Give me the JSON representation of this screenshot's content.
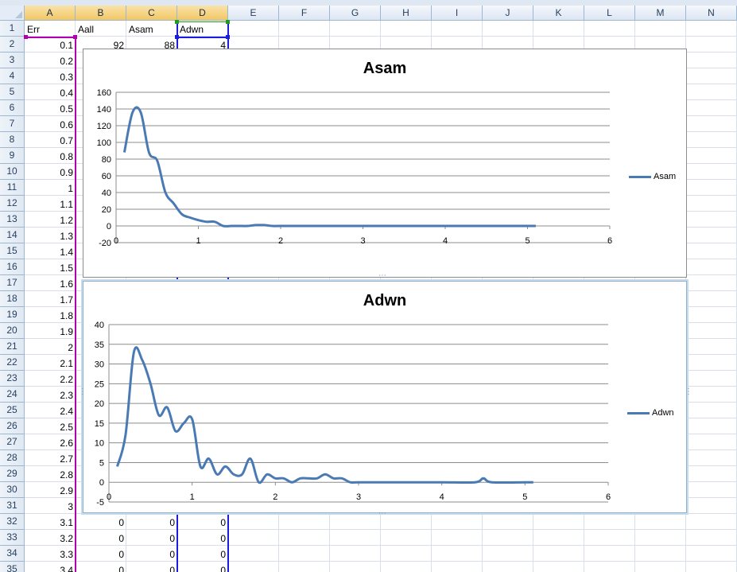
{
  "sheet": {
    "columns": [
      "A",
      "B",
      "C",
      "D",
      "E",
      "F",
      "G",
      "H",
      "I",
      "J",
      "K",
      "L",
      "M",
      "N"
    ],
    "selected_columns": [
      "A",
      "B",
      "C",
      "D"
    ],
    "rows": [
      "1",
      "2",
      "3",
      "4",
      "5",
      "6",
      "7",
      "8",
      "9",
      "10",
      "11",
      "12",
      "13",
      "14",
      "15",
      "16",
      "17",
      "18",
      "19",
      "20",
      "21",
      "22",
      "23",
      "24",
      "25",
      "26",
      "27",
      "28",
      "29",
      "30",
      "31",
      "32",
      "33",
      "34",
      "35"
    ],
    "headers": {
      "err": "Err",
      "aall": "Aall",
      "asam": "Asam",
      "adwn": "Adwn"
    },
    "err_values": [
      "0.1",
      "0.2",
      "0.3",
      "0.4",
      "0.5",
      "0.6",
      "0.7",
      "0.8",
      "0.9",
      "1",
      "1.1",
      "1.2",
      "1.3",
      "1.4",
      "1.5",
      "1.6",
      "1.7",
      "1.8",
      "1.9",
      "2",
      "2.1",
      "2.2",
      "2.3",
      "2.4",
      "2.5",
      "2.6",
      "2.7",
      "2.8",
      "2.9",
      "3",
      "3.1",
      "3.2",
      "3.3",
      "3.4"
    ],
    "row2": {
      "aall": "92",
      "asam": "88",
      "adwn": "4"
    },
    "row32": {
      "aall": "0",
      "asam": "0",
      "adwn": "0"
    },
    "row33": {
      "aall": "0",
      "asam": "0",
      "adwn": "0"
    },
    "row34": {
      "aall": "0",
      "asam": "0",
      "adwn": "0"
    },
    "row35": {
      "aall": "0",
      "asam": "0",
      "adwn": "0"
    },
    "colors": {
      "asam_range": "#b000b0",
      "adwn_range_left": "#1a9f1a",
      "adwn_range": "#1c1ce0",
      "series": "#4a7ab4"
    }
  },
  "chart_data": [
    {
      "type": "line",
      "title": "Asam",
      "series": [
        {
          "name": "Asam",
          "x": [
            0.1,
            0.2,
            0.3,
            0.4,
            0.5,
            0.6,
            0.7,
            0.8,
            0.9,
            1.0,
            1.1,
            1.2,
            1.3,
            1.4,
            1.5,
            1.6,
            1.7,
            1.8,
            1.9,
            2.0,
            2.5,
            3.0,
            3.5,
            4.0,
            4.5,
            5.0,
            5.1
          ],
          "y": [
            88,
            136,
            136,
            88,
            78,
            40,
            27,
            14,
            10,
            7,
            5,
            5,
            0,
            0,
            0,
            0,
            1,
            1,
            0,
            0,
            0,
            0,
            0,
            0,
            0,
            0,
            0
          ]
        }
      ],
      "xlim": [
        0,
        6
      ],
      "ylim": [
        -20,
        160
      ],
      "xticks": [
        "0",
        "1",
        "2",
        "3",
        "4",
        "5",
        "6"
      ],
      "yticks": [
        "-20",
        "0",
        "20",
        "40",
        "60",
        "80",
        "100",
        "120",
        "140",
        "160"
      ],
      "grid": true,
      "legend": "right"
    },
    {
      "type": "line",
      "title": "Adwn",
      "series": [
        {
          "name": "Adwn",
          "x": [
            0.1,
            0.2,
            0.3,
            0.4,
            0.5,
            0.6,
            0.7,
            0.8,
            0.9,
            1.0,
            1.1,
            1.2,
            1.3,
            1.4,
            1.5,
            1.6,
            1.7,
            1.8,
            1.9,
            2.0,
            2.1,
            2.2,
            2.3,
            2.4,
            2.5,
            2.6,
            2.7,
            2.8,
            2.9,
            3.0,
            3.5,
            4.0,
            4.4,
            4.5,
            4.6,
            5.0,
            5.1
          ],
          "y": [
            4,
            12,
            33,
            31,
            25,
            17,
            19,
            13,
            15,
            16,
            4,
            6,
            2,
            4,
            2,
            2,
            6,
            0,
            2,
            1,
            1,
            0,
            1,
            1,
            1,
            2,
            1,
            1,
            0,
            0,
            0,
            0,
            0,
            1,
            0,
            0,
            0
          ]
        }
      ],
      "xlim": [
        0,
        6
      ],
      "ylim": [
        -5,
        40
      ],
      "xticks": [
        "0",
        "1",
        "2",
        "3",
        "4",
        "5",
        "6"
      ],
      "yticks": [
        "-5",
        "0",
        "5",
        "10",
        "15",
        "20",
        "25",
        "30",
        "35",
        "40"
      ],
      "grid": true,
      "legend": "right"
    }
  ]
}
